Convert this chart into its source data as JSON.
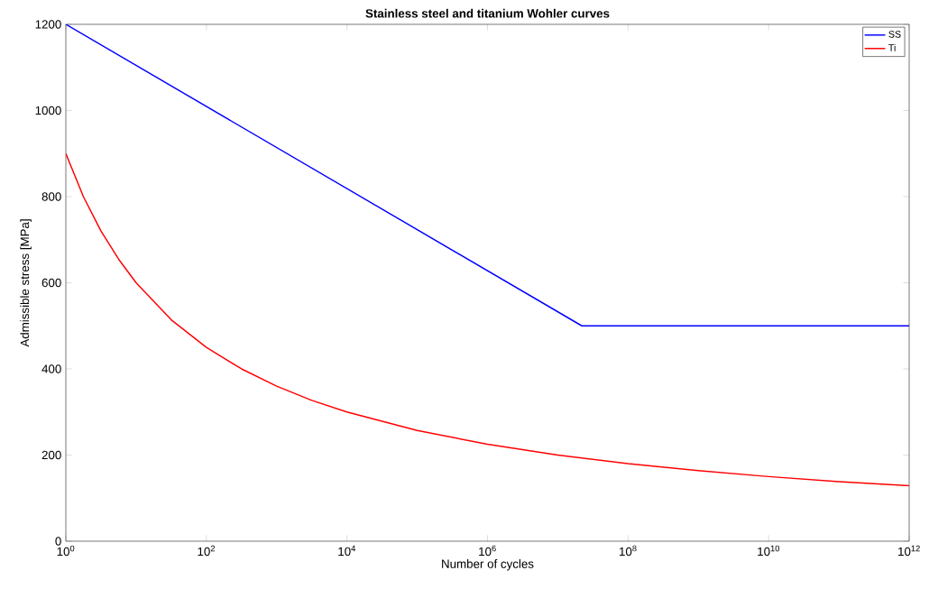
{
  "chart_data": {
    "type": "line",
    "title": "Stainless steel and titanium Wohler curves",
    "xlabel": "Number of cycles",
    "ylabel": "Admissible stress [MPa]",
    "series": [
      {
        "name": "SS",
        "color": "#0000ff",
        "x": [
          1,
          22000000.0,
          1000000000000.0
        ],
        "values": [
          1200,
          500,
          500
        ]
      },
      {
        "name": "Ti",
        "color": "#ff0000",
        "x": [
          1,
          1.778,
          3.162,
          5.623,
          10,
          31.62,
          100,
          316.2,
          1000,
          3162,
          10000,
          100000,
          1000000.0,
          10000000.0,
          100000000.0,
          1000000000.0,
          10000000000.0,
          100000000000.0,
          1000000000000.0
        ],
        "values": [
          900,
          800,
          720,
          655,
          600,
          514,
          450,
          400,
          360,
          327,
          300,
          257,
          225,
          200,
          180,
          164,
          150,
          138,
          129
        ]
      }
    ],
    "log": "x",
    "xlim": [
      1,
      1000000000000.0
    ],
    "ylim": [
      0,
      1200
    ],
    "xticks": [
      {
        "value": 1,
        "label": "10$^{0}$"
      },
      {
        "value": 100,
        "label": "10$^{2}$"
      },
      {
        "value": 10000,
        "label": "10$^{4}$"
      },
      {
        "value": 1000000.0,
        "label": "10$^{6}$"
      },
      {
        "value": 100000000.0,
        "label": "10$^{8}$"
      },
      {
        "value": 10000000000.0,
        "label": "10$^{10}$"
      },
      {
        "value": 1000000000000.0,
        "label": "10$^{12}$"
      }
    ],
    "yticks": [
      0,
      200,
      400,
      600,
      800,
      1000,
      1200
    ],
    "grid": false,
    "legend": "top right",
    "marker": "none",
    "line_style": "solid"
  }
}
